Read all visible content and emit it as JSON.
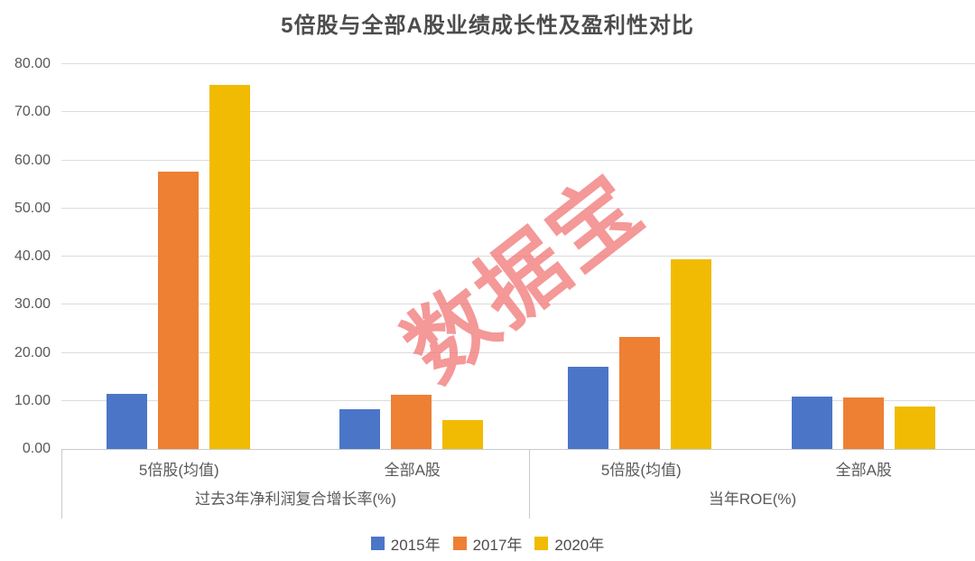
{
  "title": "5倍股与全部A股业绩成长性及盈利性对比",
  "watermark": "数据宝",
  "colors": {
    "series_blue": "#4b76c8",
    "series_orange": "#ed8033",
    "series_yellow": "#f0bb02",
    "watermark_pink": "#f07676",
    "grid": "#dcdcdc",
    "axis_border": "#c6cbd0",
    "axis_text": "#595959",
    "title_text": "#4c4c4c"
  },
  "chart_data": {
    "type": "bar",
    "title": "5倍股与全部A股业绩成长性及盈利性对比",
    "ylim": [
      0,
      80
    ],
    "grid": true,
    "legend_position": "bottom",
    "yticks": [
      "80.00",
      "70.00",
      "60.00",
      "50.00",
      "40.00",
      "30.00",
      "20.00",
      "10.00",
      "0.00"
    ],
    "ytick_values": [
      80,
      70,
      60,
      50,
      40,
      30,
      20,
      10,
      0
    ],
    "panels": [
      {
        "label": "过去3年净利润复合增长率(%)",
        "categories": [
          "5倍股(均值)",
          "全部A股"
        ]
      },
      {
        "label": "当年ROE(%)",
        "categories": [
          "5倍股(均值)",
          "全部A股"
        ]
      }
    ],
    "series": [
      {
        "name": "2015年",
        "color": "#4b76c8",
        "values": [
          [
            11.5,
            8.2
          ],
          [
            17.0,
            10.9
          ]
        ]
      },
      {
        "name": "2017年",
        "color": "#ed8033",
        "values": [
          [
            57.7,
            11.2
          ],
          [
            23.3,
            10.7
          ]
        ]
      },
      {
        "name": "2020年",
        "color": "#f0bb02",
        "values": [
          [
            75.7,
            6.0
          ],
          [
            39.4,
            8.8
          ]
        ]
      }
    ]
  }
}
